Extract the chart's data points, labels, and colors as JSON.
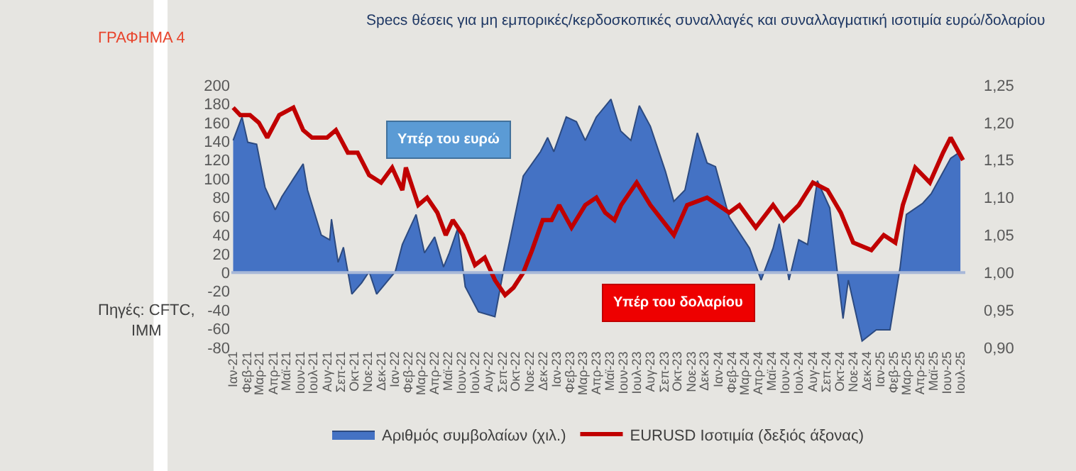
{
  "chart_data": {
    "type": "area",
    "title": "Specs θέσεις για μη εμπορικές/κερδοσκοπικές συναλλαγές και συναλλαγματική ισοτιμία ευρώ/δολαρίου",
    "annotations": [
      "Υπέρ του ευρώ",
      "Υπέρ του δολαρίου",
      "ΓΡΑΦΗΜΑ 4",
      "Πηγές: CFTC, IMM"
    ],
    "series": [
      {
        "name": "Αριθμός συμβολαίων (χιλ.)",
        "color": "#4472c4",
        "axis": "y",
        "x": [
          "2021-01-01",
          "2021-01-21",
          "2021-02-03",
          "2021-02-23",
          "2021-03-14",
          "2021-04-06",
          "2021-04-21",
          "2021-05-17",
          "2021-06-08",
          "2021-06-18",
          "2021-07-19",
          "2021-08-07",
          "2021-08-11",
          "2021-08-26",
          "2021-09-07",
          "2021-09-26",
          "2021-10-18",
          "2021-11-04",
          "2021-11-21",
          "2021-12-12",
          "2022-01-02",
          "2022-01-18",
          "2022-02-18",
          "2022-03-09",
          "2022-04-01",
          "2022-04-21",
          "2022-05-04",
          "2022-05-23",
          "2022-06-09",
          "2022-07-09",
          "2022-08-15",
          "2022-09-04",
          "2022-09-18",
          "2022-10-18",
          "2022-11-26",
          "2022-12-12",
          "2022-12-26",
          "2023-01-23",
          "2023-02-15",
          "2023-03-07",
          "2023-04-01",
          "2023-05-04",
          "2023-05-26",
          "2023-06-18",
          "2023-07-07",
          "2023-08-01",
          "2023-09-04",
          "2023-09-23",
          "2023-10-18",
          "2023-11-15",
          "2023-12-07",
          "2023-12-26",
          "2024-01-26",
          "2024-03-12",
          "2024-04-07",
          "2024-05-04",
          "2024-05-18",
          "2024-06-09",
          "2024-07-01",
          "2024-07-21",
          "2024-08-12",
          "2024-09-09",
          "2024-09-26",
          "2024-10-09",
          "2024-10-21",
          "2024-11-21",
          "2024-12-23",
          "2025-01-23",
          "2025-02-15",
          "2025-03-01",
          "2025-04-07",
          "2025-04-26",
          "2025-06-09",
          "2025-07-01"
        ],
        "values": [
          141,
          166,
          139,
          137,
          91,
          67,
          81,
          100,
          116,
          88,
          40,
          35,
          57,
          11,
          27,
          -23,
          -11,
          1,
          -23,
          -11,
          1,
          30,
          62,
          21,
          38,
          6,
          21,
          47,
          -15,
          -42,
          -47,
          4,
          35,
          103,
          129,
          144,
          129,
          166,
          161,
          141,
          166,
          185,
          151,
          141,
          178,
          156,
          108,
          76,
          88,
          149,
          117,
          113,
          59,
          26,
          -8,
          26,
          52,
          -8,
          35,
          30,
          98,
          69,
          1,
          -49,
          -8,
          -73,
          -61,
          -61,
          6,
          62,
          74,
          84,
          122,
          129
        ]
      },
      {
        "name": "EURUSD Ισοτιμία (δεξιός άξονας)",
        "type": "line",
        "color": "#c00000",
        "axis": "y2",
        "x": [
          "2021-01-01",
          "2021-01-17",
          "2021-02-08",
          "2021-02-28",
          "2021-03-19",
          "2021-04-15",
          "2021-05-17",
          "2021-06-08",
          "2021-06-28",
          "2021-08-01",
          "2021-08-21",
          "2021-09-17",
          "2021-10-09",
          "2021-11-04",
          "2021-12-01",
          "2021-12-26",
          "2022-01-18",
          "2022-01-26",
          "2022-02-23",
          "2022-03-15",
          "2022-04-07",
          "2022-04-26",
          "2022-05-12",
          "2022-06-04",
          "2022-07-01",
          "2022-07-23",
          "2022-08-15",
          "2022-09-07",
          "2022-09-26",
          "2022-10-18",
          "2022-11-07",
          "2022-12-01",
          "2022-12-21",
          "2023-01-07",
          "2023-02-04",
          "2023-03-07",
          "2023-04-01",
          "2023-04-21",
          "2023-05-12",
          "2023-05-27",
          "2023-07-01",
          "2023-08-01",
          "2023-09-23",
          "2023-10-23",
          "2023-12-07",
          "2024-01-26",
          "2024-02-18",
          "2024-03-26",
          "2024-05-04",
          "2024-05-28",
          "2024-07-01",
          "2024-08-02",
          "2024-09-04",
          "2024-10-04",
          "2024-11-01",
          "2024-12-12",
          "2025-01-09",
          "2025-02-04",
          "2025-02-21",
          "2025-03-21",
          "2025-04-23",
          "2025-05-23",
          "2025-06-09",
          "2025-07-07"
        ],
        "values": [
          1.22,
          1.21,
          1.21,
          1.2,
          1.18,
          1.21,
          1.22,
          1.19,
          1.18,
          1.18,
          1.19,
          1.16,
          1.16,
          1.13,
          1.12,
          1.14,
          1.11,
          1.14,
          1.09,
          1.1,
          1.08,
          1.05,
          1.07,
          1.05,
          1.01,
          1.02,
          0.99,
          0.97,
          0.98,
          1.0,
          1.03,
          1.07,
          1.07,
          1.09,
          1.06,
          1.09,
          1.1,
          1.08,
          1.07,
          1.09,
          1.12,
          1.09,
          1.05,
          1.09,
          1.1,
          1.08,
          1.09,
          1.06,
          1.09,
          1.07,
          1.09,
          1.12,
          1.11,
          1.08,
          1.04,
          1.03,
          1.05,
          1.04,
          1.09,
          1.14,
          1.12,
          1.16,
          1.18,
          1.15
        ]
      }
    ],
    "ylim": [
      -80,
      200
    ],
    "yticks": [
      -80,
      -60,
      -40,
      -20,
      0,
      20,
      40,
      60,
      80,
      100,
      120,
      140,
      160,
      180,
      200
    ],
    "y2lim": [
      0.9,
      1.25
    ],
    "y2ticks": [
      {
        "value": 0.9,
        "label": "0,90"
      },
      {
        "value": 0.95,
        "label": "0,95"
      },
      {
        "value": 1.0,
        "label": "1,00"
      },
      {
        "value": 1.05,
        "label": "1,05"
      },
      {
        "value": 1.1,
        "label": "1,10"
      },
      {
        "value": 1.15,
        "label": "1,15"
      },
      {
        "value": 1.2,
        "label": "1,20"
      },
      {
        "value": 1.25,
        "label": "1,25"
      }
    ],
    "xlim": [
      "2020-12-28",
      "2025-07-12"
    ],
    "xticks": [
      {
        "value": "2021-01-01",
        "label": "Ιαν-21"
      },
      {
        "value": "2021-02-01",
        "label": "Φεβ-21"
      },
      {
        "value": "2021-03-01",
        "label": "Μαρ-21"
      },
      {
        "value": "2021-04-01",
        "label": "Απρ-21"
      },
      {
        "value": "2021-05-01",
        "label": "Μαϊ-21"
      },
      {
        "value": "2021-06-01",
        "label": "Ιουν-21"
      },
      {
        "value": "2021-07-01",
        "label": "Ιουλ-21"
      },
      {
        "value": "2021-08-01",
        "label": "Αυγ-21"
      },
      {
        "value": "2021-09-01",
        "label": "Σεπ-21"
      },
      {
        "value": "2021-10-01",
        "label": "Οκτ-21"
      },
      {
        "value": "2021-11-01",
        "label": "Νοε-21"
      },
      {
        "value": "2021-12-01",
        "label": "Δεκ-21"
      },
      {
        "value": "2022-01-01",
        "label": "Ιαν-22"
      },
      {
        "value": "2022-02-01",
        "label": "Φεβ-22"
      },
      {
        "value": "2022-03-01",
        "label": "Μαρ-22"
      },
      {
        "value": "2022-04-01",
        "label": "Απρ-22"
      },
      {
        "value": "2022-05-01",
        "label": "Μαϊ-22"
      },
      {
        "value": "2022-06-01",
        "label": "Ιουν-22"
      },
      {
        "value": "2022-07-01",
        "label": "Ιουλ-22"
      },
      {
        "value": "2022-08-01",
        "label": "Αυγ-22"
      },
      {
        "value": "2022-09-01",
        "label": "Σεπ-22"
      },
      {
        "value": "2022-10-01",
        "label": "Οκτ-22"
      },
      {
        "value": "2022-11-01",
        "label": "Νοε-22"
      },
      {
        "value": "2022-12-01",
        "label": "Δεκ-22"
      },
      {
        "value": "2023-01-01",
        "label": "Ιαν-23"
      },
      {
        "value": "2023-02-01",
        "label": "Φεβ-23"
      },
      {
        "value": "2023-03-01",
        "label": "Μαρ-23"
      },
      {
        "value": "2023-04-01",
        "label": "Απρ-23"
      },
      {
        "value": "2023-05-01",
        "label": "Μαϊ-23"
      },
      {
        "value": "2023-06-01",
        "label": "Ιουν-23"
      },
      {
        "value": "2023-07-01",
        "label": "Ιουλ-23"
      },
      {
        "value": "2023-08-01",
        "label": "Αυγ-23"
      },
      {
        "value": "2023-09-01",
        "label": "Σεπ-23"
      },
      {
        "value": "2023-10-01",
        "label": "Οκτ-23"
      },
      {
        "value": "2023-11-01",
        "label": "Νοε-23"
      },
      {
        "value": "2023-12-01",
        "label": "Δεκ-23"
      },
      {
        "value": "2024-01-01",
        "label": "Ιαν-24"
      },
      {
        "value": "2024-02-01",
        "label": "Φεβ-24"
      },
      {
        "value": "2024-03-01",
        "label": "Μαρ-24"
      },
      {
        "value": "2024-04-01",
        "label": "Απρ-24"
      },
      {
        "value": "2024-05-01",
        "label": "Μαϊ-24"
      },
      {
        "value": "2024-06-01",
        "label": "Ιουν-24"
      },
      {
        "value": "2024-07-01",
        "label": "Ιουλ-24"
      },
      {
        "value": "2024-08-01",
        "label": "Αυγ-24"
      },
      {
        "value": "2024-09-01",
        "label": "Σεπ-24"
      },
      {
        "value": "2024-10-01",
        "label": "Οκτ-24"
      },
      {
        "value": "2024-11-01",
        "label": "Νοε-24"
      },
      {
        "value": "2024-12-01",
        "label": "Δεκ-24"
      },
      {
        "value": "2025-01-01",
        "label": "Ιαν-25"
      },
      {
        "value": "2025-02-01",
        "label": "Φεβ-25"
      },
      {
        "value": "2025-03-01",
        "label": "Μαρ-25"
      },
      {
        "value": "2025-04-01",
        "label": "Απρ-25"
      },
      {
        "value": "2025-05-01",
        "label": "Μαϊ-25"
      },
      {
        "value": "2025-06-01",
        "label": "Ιουν-25"
      },
      {
        "value": "2025-07-01",
        "label": "Ιουλ-25"
      }
    ],
    "ref_lines": [
      {
        "axis": "y",
        "value": 0,
        "color": "#a8b8d8"
      }
    ],
    "grid": false,
    "legend": "bottom",
    "marker": "none",
    "line_style": "solid"
  }
}
